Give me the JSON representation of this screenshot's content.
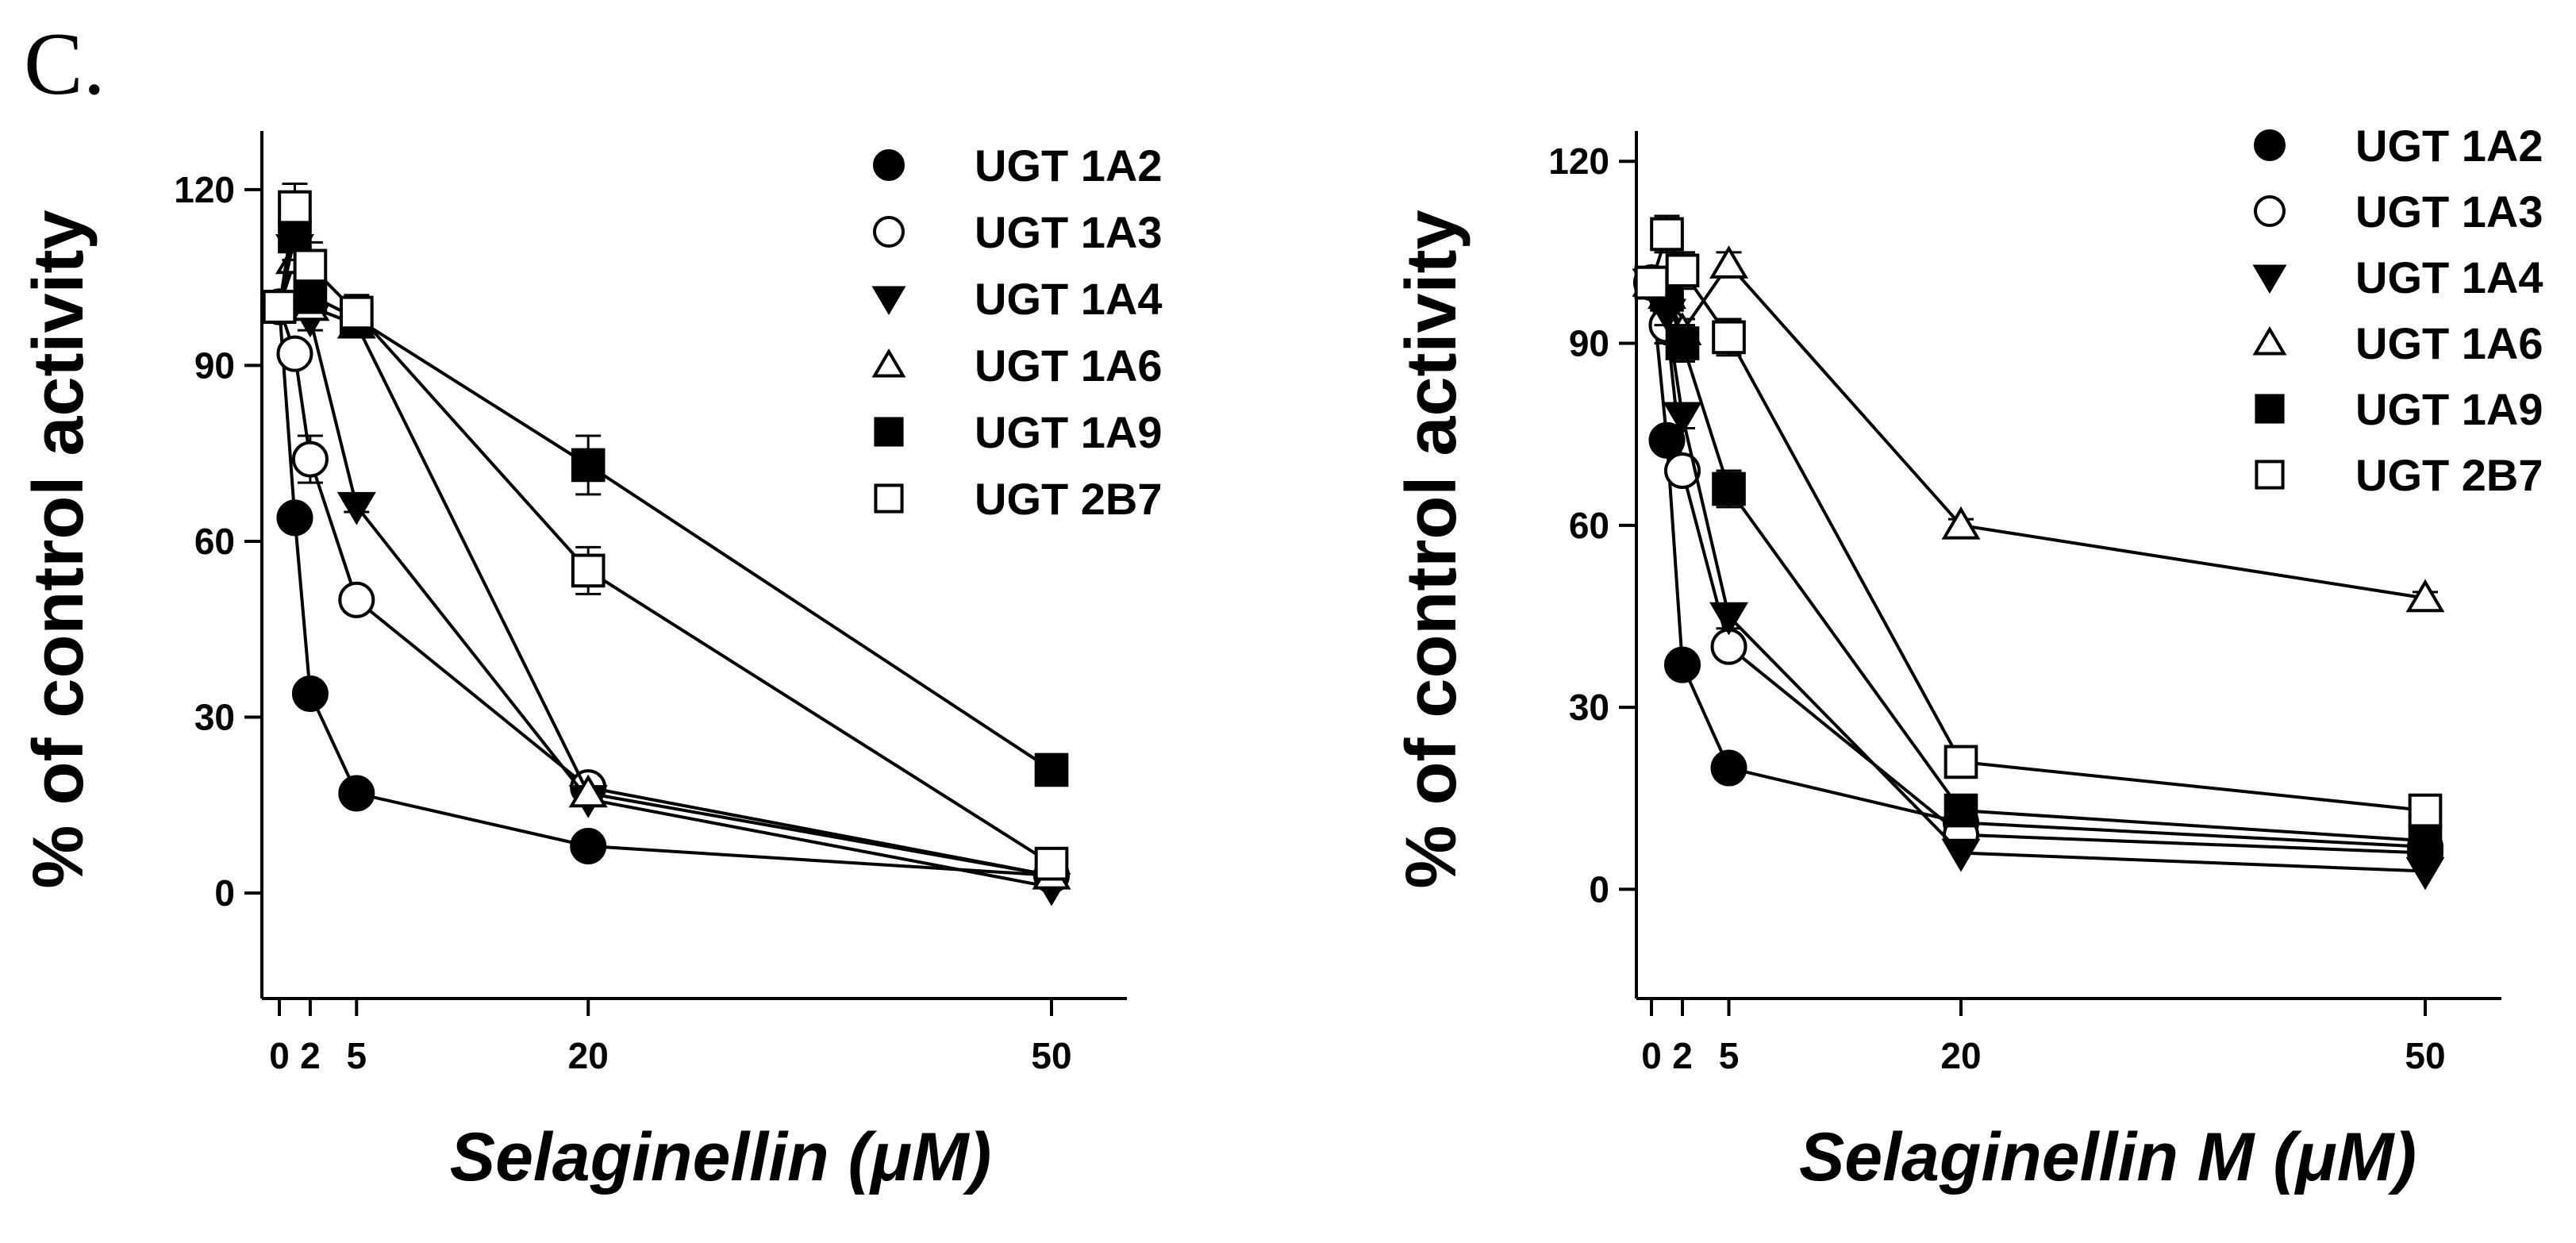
{
  "panel_label": "C.",
  "chart_data": [
    {
      "type": "line",
      "xlabel": "Selaginellin (μM)",
      "ylabel": "% of control activity",
      "x": [
        0,
        1,
        2,
        5,
        20,
        50
      ],
      "x_ticks": [
        "0",
        "2",
        "5",
        "20",
        "50"
      ],
      "x_tick_values": [
        0,
        2,
        5,
        20,
        50
      ],
      "xlim": [
        -1,
        54
      ],
      "ylim": [
        -18,
        130
      ],
      "y_ticks": [
        "0",
        "30",
        "60",
        "90",
        "120"
      ],
      "y_tick_values": [
        0,
        30,
        60,
        90,
        120
      ],
      "legend_position": "top-right",
      "series": [
        {
          "name": "UGT 1A2",
          "marker": "filled-circle",
          "values": [
            100,
            64,
            34,
            17,
            8,
            3
          ],
          "errors": [
            0,
            0,
            1,
            1,
            0,
            0
          ]
        },
        {
          "name": "UGT 1A3",
          "marker": "open-circle",
          "values": [
            100,
            92,
            74,
            50,
            18,
            3
          ],
          "errors": [
            0,
            0,
            4,
            1,
            0,
            0
          ]
        },
        {
          "name": "UGT 1A4",
          "marker": "filled-triangle-down",
          "values": [
            100,
            110,
            98,
            66,
            16,
            1
          ],
          "errors": [
            0,
            2,
            2,
            1,
            0,
            0
          ]
        },
        {
          "name": "UGT 1A6",
          "marker": "open-triangle-up",
          "values": [
            100,
            108,
            100,
            97,
            17,
            3
          ],
          "errors": [
            0,
            2,
            2,
            2,
            0,
            0
          ]
        },
        {
          "name": "UGT 1A9",
          "marker": "filled-square",
          "values": [
            100,
            112,
            102,
            98,
            73,
            21
          ],
          "errors": [
            0,
            4,
            3,
            2,
            5,
            1
          ]
        },
        {
          "name": "UGT 2B7",
          "marker": "open-square",
          "values": [
            100,
            117,
            107,
            99,
            55,
            5
          ],
          "errors": [
            0,
            4,
            4,
            3,
            4,
            1
          ]
        }
      ]
    },
    {
      "type": "line",
      "xlabel": "Selaginellin M (μM)",
      "ylabel": "% of control activity",
      "x": [
        0,
        1,
        2,
        5,
        20,
        50
      ],
      "x_ticks": [
        "0",
        "2",
        "5",
        "20",
        "50"
      ],
      "x_tick_values": [
        0,
        2,
        5,
        20,
        50
      ],
      "xlim": [
        -1,
        54
      ],
      "ylim": [
        -18,
        125
      ],
      "y_ticks": [
        "0",
        "30",
        "60",
        "90",
        "120"
      ],
      "y_tick_values": [
        0,
        30,
        60,
        90,
        120
      ],
      "legend_position": "top-right",
      "series": [
        {
          "name": "UGT 1A2",
          "marker": "filled-circle",
          "values": [
            100,
            74,
            37,
            20,
            11,
            7
          ],
          "errors": [
            0,
            0,
            1,
            1,
            0,
            0
          ]
        },
        {
          "name": "UGT 1A3",
          "marker": "open-circle",
          "values": [
            100,
            93,
            69,
            40,
            9,
            6
          ],
          "errors": [
            0,
            3,
            2,
            2,
            0,
            0
          ]
        },
        {
          "name": "UGT 1A4",
          "marker": "filled-triangle-down",
          "values": [
            100,
            95,
            78,
            45,
            6,
            3
          ],
          "errors": [
            0,
            2,
            2,
            2,
            0,
            0
          ]
        },
        {
          "name": "UGT 1A6",
          "marker": "open-triangle-up",
          "values": [
            100,
            98,
            92,
            103,
            60,
            48
          ],
          "errors": [
            0,
            2,
            2,
            2,
            1,
            1
          ]
        },
        {
          "name": "UGT 1A9",
          "marker": "filled-square",
          "values": [
            100,
            98,
            90,
            66,
            13,
            8
          ],
          "errors": [
            0,
            3,
            3,
            3,
            1,
            1
          ]
        },
        {
          "name": "UGT 2B7",
          "marker": "open-square",
          "values": [
            100,
            108,
            102,
            91,
            21,
            13
          ],
          "errors": [
            0,
            3,
            3,
            3,
            1,
            1
          ]
        }
      ]
    }
  ]
}
